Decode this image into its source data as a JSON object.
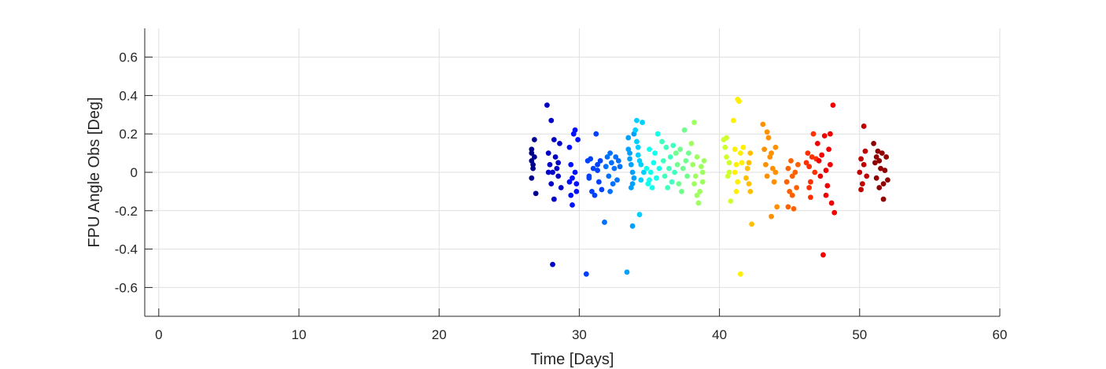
{
  "chart_data": {
    "type": "scatter",
    "title": "",
    "xlabel": "Time [Days]",
    "ylabel": "FPU Angle Obs [Deg]",
    "xlim": [
      -1,
      60
    ],
    "ylim": [
      -0.75,
      0.75
    ],
    "xticks": [
      0,
      10,
      20,
      30,
      40,
      50,
      60
    ],
    "yticks": [
      -0.6,
      -0.4,
      -0.2,
      0,
      0.2,
      0.4,
      0.6
    ],
    "ytick_labels": [
      "-0.6",
      "-0.4",
      "-0.2",
      "0",
      "0.2",
      "0.4",
      "0.6"
    ],
    "grid": true,
    "colormap": "jet",
    "series": [
      {
        "color": "#00008f",
        "points": [
          [
            26.6,
            0.1
          ],
          [
            26.6,
            0.06
          ],
          [
            26.7,
            0.02
          ],
          [
            26.6,
            -0.03
          ],
          [
            26.8,
            0.17
          ],
          [
            26.9,
            -0.11
          ],
          [
            26.8,
            0.08
          ],
          [
            26.7,
            0.04
          ],
          [
            26.6,
            0.12
          ]
        ]
      },
      {
        "color": "#0000c8",
        "points": [
          [
            27.7,
            0.35
          ],
          [
            27.8,
            0.1
          ],
          [
            27.9,
            0.04
          ],
          [
            28.0,
            0.27
          ],
          [
            28.1,
            0.0
          ],
          [
            28.2,
            0.17
          ],
          [
            28.0,
            -0.06
          ],
          [
            28.3,
            0.08
          ],
          [
            28.4,
            0.02
          ],
          [
            28.5,
            -0.02
          ],
          [
            28.1,
            -0.48
          ],
          [
            28.6,
            0.15
          ],
          [
            28.7,
            -0.08
          ],
          [
            27.8,
            0.0
          ],
          [
            28.2,
            -0.14
          ],
          [
            28.5,
            0.05
          ]
        ]
      },
      {
        "color": "#0010ff",
        "points": [
          [
            29.3,
            0.13
          ],
          [
            29.4,
            0.04
          ],
          [
            29.5,
            -0.03
          ],
          [
            29.6,
            0.2
          ],
          [
            29.7,
            0.22
          ],
          [
            29.8,
            -0.06
          ],
          [
            29.5,
            -0.17
          ],
          [
            29.9,
            0.17
          ],
          [
            29.4,
            -0.12
          ],
          [
            29.7,
            0.0
          ],
          [
            29.3,
            -0.05
          ],
          [
            29.8,
            -0.1
          ]
        ]
      },
      {
        "color": "#0040ff",
        "points": [
          [
            30.5,
            -0.53
          ],
          [
            30.6,
            0.06
          ],
          [
            30.7,
            -0.02
          ],
          [
            30.8,
            0.07
          ],
          [
            30.9,
            -0.1
          ],
          [
            31.0,
            0.02
          ],
          [
            31.1,
            -0.12
          ],
          [
            31.2,
            0.2
          ],
          [
            31.3,
            0.01
          ],
          [
            31.4,
            -0.05
          ],
          [
            31.5,
            0.06
          ],
          [
            31.6,
            -0.09
          ],
          [
            30.7,
            -0.03
          ],
          [
            31.3,
            0.04
          ]
        ]
      },
      {
        "color": "#0070ff",
        "points": [
          [
            31.8,
            -0.26
          ],
          [
            31.9,
            0.03
          ],
          [
            32.0,
            0.08
          ],
          [
            32.1,
            -0.02
          ],
          [
            32.2,
            0.1
          ],
          [
            32.3,
            0.05
          ],
          [
            32.4,
            -0.06
          ],
          [
            32.5,
            0.02
          ],
          [
            32.6,
            0.08
          ],
          [
            32.7,
            -0.04
          ],
          [
            32.8,
            0.06
          ],
          [
            32.2,
            -0.1
          ],
          [
            32.9,
            0.03
          ]
        ]
      },
      {
        "color": "#00a0ff",
        "points": [
          [
            33.4,
            -0.52
          ],
          [
            33.5,
            0.18
          ],
          [
            33.6,
            0.1
          ],
          [
            33.7,
            0.04
          ],
          [
            33.8,
            -0.28
          ],
          [
            33.9,
            0.2
          ],
          [
            33.8,
            0.0
          ],
          [
            33.7,
            -0.08
          ],
          [
            33.6,
            0.07
          ],
          [
            33.9,
            -0.03
          ],
          [
            33.5,
            0.12
          ],
          [
            33.8,
            -0.06
          ]
        ]
      },
      {
        "color": "#00d0ff",
        "points": [
          [
            34.0,
            0.22
          ],
          [
            34.1,
            0.27
          ],
          [
            34.2,
            0.13
          ],
          [
            34.3,
            -0.22
          ],
          [
            34.4,
            0.04
          ],
          [
            34.2,
            0.09
          ],
          [
            34.5,
            0.26
          ],
          [
            34.6,
            0.0
          ],
          [
            34.4,
            -0.04
          ],
          [
            34.3,
            0.06
          ],
          [
            34.1,
            0.16
          ]
        ]
      },
      {
        "color": "#10ffef",
        "points": [
          [
            34.8,
            0.02
          ],
          [
            34.9,
            -0.06
          ],
          [
            35.0,
            0.12
          ],
          [
            35.1,
            0.0
          ],
          [
            35.2,
            -0.08
          ],
          [
            35.3,
            0.05
          ],
          [
            35.4,
            0.1
          ],
          [
            35.5,
            -0.03
          ],
          [
            35.6,
            0.2
          ],
          [
            35.7,
            0.02
          ],
          [
            35.0,
            -0.04
          ]
        ]
      },
      {
        "color": "#40ffbf",
        "points": [
          [
            35.9,
            0.16
          ],
          [
            36.0,
            0.06
          ],
          [
            36.1,
            -0.02
          ],
          [
            36.2,
            0.13
          ],
          [
            36.3,
            -0.08
          ],
          [
            36.4,
            0.02
          ],
          [
            36.5,
            0.08
          ],
          [
            36.6,
            -0.05
          ],
          [
            36.7,
            0.14
          ],
          [
            36.8,
            0.0
          ]
        ]
      },
      {
        "color": "#70ff8f",
        "points": [
          [
            36.9,
            0.1
          ],
          [
            37.0,
            0.04
          ],
          [
            37.1,
            -0.06
          ],
          [
            37.2,
            0.12
          ],
          [
            37.3,
            -0.1
          ],
          [
            37.4,
            0.02
          ],
          [
            37.5,
            0.22
          ],
          [
            37.6,
            0.06
          ],
          [
            37.7,
            -0.02
          ],
          [
            37.8,
            0.1
          ]
        ]
      },
      {
        "color": "#a0ff60",
        "points": [
          [
            38.0,
            0.15
          ],
          [
            38.1,
            0.04
          ],
          [
            38.2,
            0.26
          ],
          [
            38.3,
            -0.02
          ],
          [
            38.4,
            0.08
          ],
          [
            38.5,
            -0.16
          ],
          [
            38.6,
            -0.1
          ],
          [
            38.7,
            0.03
          ],
          [
            38.8,
            -0.05
          ],
          [
            38.9,
            0.06
          ],
          [
            38.4,
            -0.12
          ],
          [
            38.2,
            -0.06
          ],
          [
            38.8,
            0.0
          ]
        ]
      },
      {
        "color": "#d0ff30",
        "points": [
          [
            40.3,
            0.17
          ],
          [
            40.4,
            0.13
          ],
          [
            40.5,
            0.08
          ],
          [
            40.6,
            -0.02
          ],
          [
            40.7,
            0.05
          ],
          [
            40.8,
            -0.15
          ],
          [
            40.5,
            0.18
          ],
          [
            40.7,
            0.0
          ]
        ]
      },
      {
        "color": "#ffef00",
        "points": [
          [
            41.0,
            0.27
          ],
          [
            41.1,
            0.12
          ],
          [
            41.2,
            0.04
          ],
          [
            41.3,
            0.38
          ],
          [
            41.4,
            0.37
          ],
          [
            41.5,
            -0.53
          ],
          [
            41.3,
            -0.05
          ],
          [
            41.6,
            0.05
          ],
          [
            41.7,
            0.13
          ],
          [
            41.2,
            -0.1
          ],
          [
            41.5,
            0.1
          ],
          [
            41.1,
            0.0
          ]
        ]
      },
      {
        "color": "#ffbf00",
        "points": [
          [
            42.0,
            0.02
          ],
          [
            42.1,
            -0.06
          ],
          [
            42.2,
            0.1
          ],
          [
            42.3,
            -0.27
          ],
          [
            42.1,
            0.05
          ],
          [
            41.9,
            -0.03
          ],
          [
            42.2,
            -0.1
          ]
        ]
      },
      {
        "color": "#ff9000",
        "points": [
          [
            43.1,
            0.25
          ],
          [
            43.2,
            0.12
          ],
          [
            43.3,
            0.04
          ],
          [
            43.4,
            -0.02
          ],
          [
            43.5,
            0.18
          ],
          [
            43.6,
            0.08
          ],
          [
            43.7,
            -0.23
          ],
          [
            43.8,
            0.02
          ],
          [
            43.9,
            -0.05
          ],
          [
            44.0,
            0.13
          ],
          [
            44.1,
            -0.18
          ],
          [
            43.4,
            0.21
          ],
          [
            43.7,
            0.1
          ],
          [
            44.0,
            0.0
          ]
        ]
      },
      {
        "color": "#ff6000",
        "points": [
          [
            44.8,
            -0.05
          ],
          [
            44.9,
            0.02
          ],
          [
            45.0,
            -0.1
          ],
          [
            45.1,
            0.06
          ],
          [
            45.2,
            -0.02
          ],
          [
            45.3,
            -0.19
          ],
          [
            45.4,
            0.0
          ],
          [
            45.5,
            -0.08
          ],
          [
            45.6,
            0.04
          ],
          [
            45.2,
            -0.12
          ],
          [
            44.9,
            -0.18
          ]
        ]
      },
      {
        "color": "#ff3000",
        "points": [
          [
            46.3,
            0.1
          ],
          [
            46.4,
            0.03
          ],
          [
            46.5,
            -0.05
          ],
          [
            46.6,
            0.08
          ],
          [
            46.7,
            0.2
          ],
          [
            46.5,
            -0.13
          ],
          [
            46.8,
            0.0
          ],
          [
            46.9,
            0.07
          ],
          [
            46.4,
            -0.08
          ],
          [
            46.2,
            0.05
          ]
        ]
      },
      {
        "color": "#f00000",
        "points": [
          [
            47.0,
            0.15
          ],
          [
            47.1,
            0.06
          ],
          [
            47.2,
            -0.02
          ],
          [
            47.3,
            0.09
          ],
          [
            47.4,
            -0.43
          ],
          [
            47.5,
            0.19
          ],
          [
            47.6,
            0.01
          ],
          [
            47.7,
            -0.07
          ],
          [
            47.8,
            0.12
          ],
          [
            47.9,
            0.04
          ],
          [
            48.0,
            -0.16
          ],
          [
            48.1,
            0.35
          ],
          [
            48.2,
            -0.21
          ],
          [
            47.6,
            -0.12
          ],
          [
            47.9,
            0.2
          ]
        ]
      },
      {
        "color": "#c00000",
        "points": [
          [
            50.0,
            0.0
          ],
          [
            50.1,
            0.07
          ],
          [
            50.2,
            -0.06
          ],
          [
            50.3,
            0.24
          ],
          [
            50.4,
            0.11
          ],
          [
            50.5,
            -0.02
          ],
          [
            50.3,
            0.04
          ],
          [
            50.1,
            -0.09
          ]
        ]
      },
      {
        "color": "#900000",
        "points": [
          [
            51.0,
            0.15
          ],
          [
            51.1,
            0.05
          ],
          [
            51.2,
            -0.03
          ],
          [
            51.3,
            0.11
          ],
          [
            51.4,
            -0.08
          ],
          [
            51.5,
            0.02
          ],
          [
            51.6,
            0.1
          ],
          [
            51.7,
            -0.14
          ],
          [
            51.8,
            0.01
          ],
          [
            51.9,
            0.08
          ],
          [
            52.0,
            -0.04
          ],
          [
            51.4,
            0.06
          ],
          [
            51.7,
            -0.06
          ],
          [
            51.2,
            0.08
          ]
        ]
      }
    ]
  }
}
